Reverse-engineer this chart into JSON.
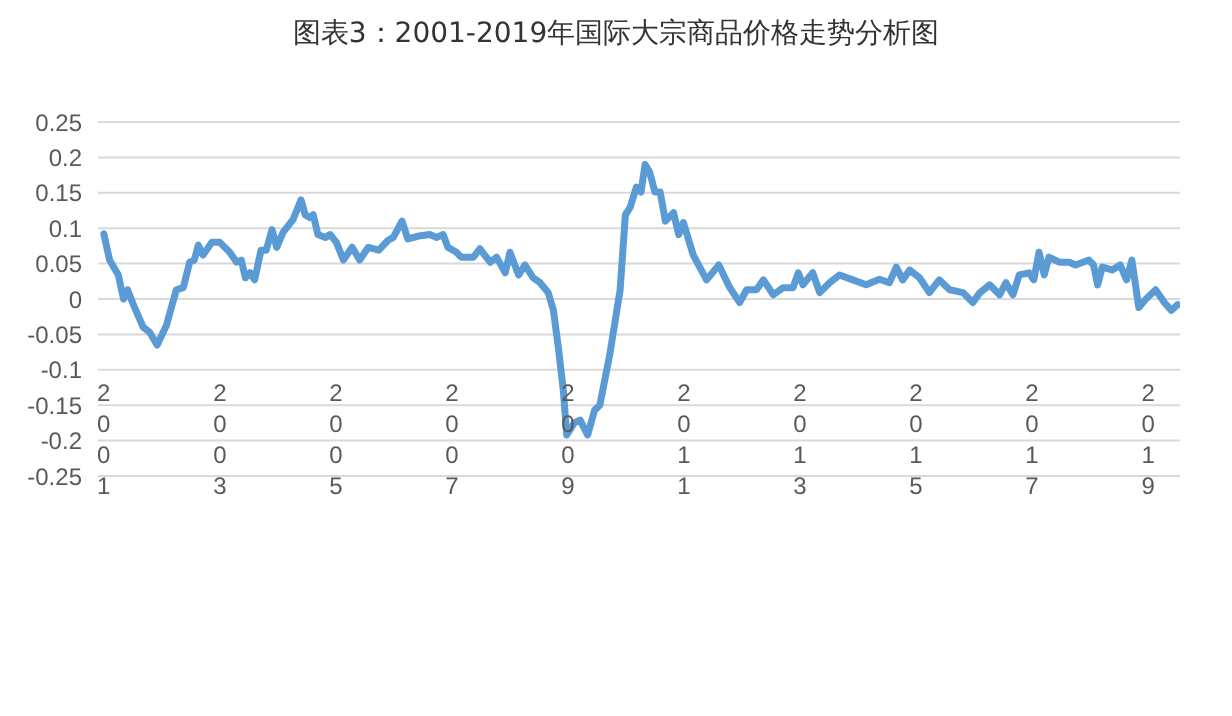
{
  "chart_data": {
    "type": "line",
    "title": "图表3：2001-2019年国际大宗商品价格走势分析图",
    "series": [
      {
        "color": "#5b9bd5",
        "x": [
          2001.0,
          2001.1,
          2001.25,
          2001.34,
          2001.41,
          2001.51,
          2001.68,
          2001.79,
          2001.92,
          2002.08,
          2002.25,
          2002.37,
          2002.48,
          2002.56,
          2002.63,
          2002.71,
          2002.86,
          2003.0,
          2003.17,
          2003.29,
          2003.37,
          2003.44,
          2003.52,
          2003.6,
          2003.71,
          2003.8,
          2003.9,
          2003.98,
          2004.09,
          2004.26,
          2004.4,
          2004.47,
          2004.55,
          2004.61,
          2004.69,
          2004.82,
          2004.9,
          2005.01,
          2005.13,
          2005.28,
          2005.41,
          2005.56,
          2005.74,
          2005.9,
          2005.99,
          2006.14,
          2006.24,
          2006.43,
          2006.62,
          2006.74,
          2006.85,
          2006.93,
          2007.08,
          2007.16,
          2007.37,
          2007.48,
          2007.66,
          2007.77,
          2007.92,
          2008.0,
          2008.15,
          2008.26,
          2008.4,
          2008.52,
          2008.66,
          2008.75,
          2008.84,
          2008.92,
          2008.98,
          2009.11,
          2009.21,
          2009.34,
          2009.46,
          2009.55,
          2009.72,
          2009.9,
          2009.99,
          2010.07,
          2010.18,
          2010.26,
          2010.33,
          2010.41,
          2010.5,
          2010.59,
          2010.68,
          2010.82,
          2010.91,
          2010.99,
          2011.16,
          2011.39,
          2011.6,
          2011.79,
          2011.96,
          2012.08,
          2012.25,
          2012.37,
          2012.54,
          2012.71,
          2012.88,
          2012.97,
          2013.05,
          2013.22,
          2013.34,
          2013.51,
          2013.68,
          2013.91,
          2014.14,
          2014.37,
          2014.54,
          2014.66,
          2014.77,
          2014.89,
          2015.06,
          2015.23,
          2015.4,
          2015.58,
          2015.81,
          2015.98,
          2016.1,
          2016.27,
          2016.44,
          2016.55,
          2016.67,
          2016.78,
          2016.95,
          2017.03,
          2017.12,
          2017.21,
          2017.29,
          2017.47,
          2017.64,
          2017.75,
          2017.98,
          2018.06,
          2018.13,
          2018.21,
          2018.38,
          2018.52,
          2018.63,
          2018.72,
          2018.84,
          2018.95,
          2019.13,
          2019.28,
          2019.4,
          2019.51
        ],
        "values": [
          0.092,
          0.055,
          0.034,
          0.0,
          0.013,
          -0.008,
          -0.04,
          -0.047,
          -0.065,
          -0.037,
          0.013,
          0.016,
          0.052,
          0.055,
          0.076,
          0.062,
          0.08,
          0.08,
          0.066,
          0.052,
          0.055,
          0.03,
          0.037,
          0.027,
          0.069,
          0.069,
          0.098,
          0.073,
          0.094,
          0.112,
          0.14,
          0.119,
          0.115,
          0.119,
          0.091,
          0.087,
          0.091,
          0.08,
          0.055,
          0.073,
          0.055,
          0.073,
          0.069,
          0.083,
          0.087,
          0.11,
          0.085,
          0.089,
          0.091,
          0.087,
          0.091,
          0.073,
          0.066,
          0.059,
          0.059,
          0.071,
          0.052,
          0.059,
          0.037,
          0.066,
          0.034,
          0.048,
          0.03,
          0.023,
          0.009,
          -0.016,
          -0.072,
          -0.129,
          -0.192,
          -0.175,
          -0.171,
          -0.192,
          -0.157,
          -0.15,
          -0.079,
          0.013,
          0.119,
          0.129,
          0.158,
          0.151,
          0.19,
          0.179,
          0.151,
          0.151,
          0.11,
          0.122,
          0.091,
          0.108,
          0.062,
          0.027,
          0.048,
          0.016,
          -0.005,
          0.013,
          0.013,
          0.027,
          0.006,
          0.016,
          0.016,
          0.037,
          0.02,
          0.037,
          0.009,
          0.023,
          0.034,
          0.027,
          0.02,
          0.028,
          0.023,
          0.045,
          0.027,
          0.041,
          0.03,
          0.009,
          0.027,
          0.013,
          0.009,
          -0.005,
          0.009,
          0.02,
          0.006,
          0.023,
          0.006,
          0.034,
          0.037,
          0.027,
          0.066,
          0.034,
          0.059,
          0.052,
          0.052,
          0.048,
          0.055,
          0.048,
          0.02,
          0.045,
          0.041,
          0.048,
          0.027,
          0.055,
          -0.012,
          -0.001,
          0.013,
          -0.005,
          -0.016,
          -0.008
        ]
      }
    ],
    "xlim": [
      2000.9,
      2019.55
    ],
    "xticks": [
      2001,
      2003,
      2005,
      2007,
      2009,
      2011,
      2013,
      2015,
      2017,
      2019
    ],
    "ylim": [
      -0.25,
      0.25
    ],
    "yticks": [
      -0.25,
      -0.2,
      -0.15,
      -0.1,
      -0.05,
      0,
      0.05,
      0.1,
      0.15,
      0.2,
      0.25
    ],
    "grid": "y",
    "marker": "none",
    "line_style": "solid"
  }
}
